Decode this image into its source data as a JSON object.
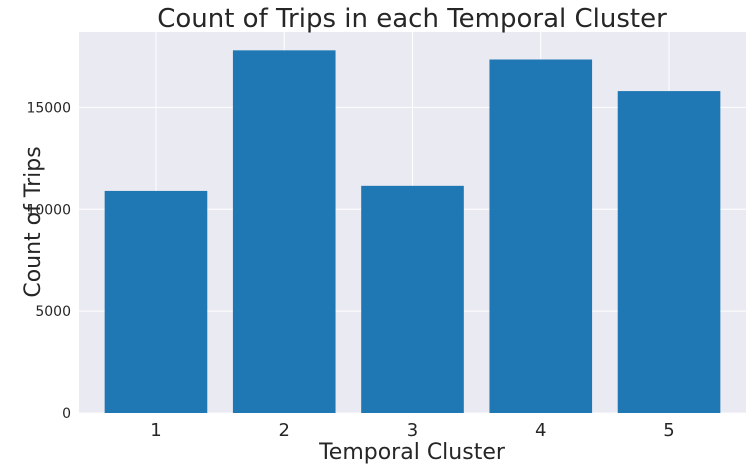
{
  "chart_data": {
    "type": "bar",
    "title": "Count of Trips in each Temporal Cluster",
    "xlabel": "Temporal Cluster",
    "ylabel": "Count of Trips",
    "categories": [
      "1",
      "2",
      "3",
      "4",
      "5"
    ],
    "values": [
      10900,
      17800,
      11150,
      17350,
      15800
    ],
    "yticks": [
      0,
      5000,
      10000,
      15000
    ],
    "ylim": [
      0,
      18700
    ],
    "grid": true,
    "colors": {
      "bar": "#1f77b4",
      "plot_background": "#eaeaf2",
      "grid": "#ffffff"
    }
  }
}
